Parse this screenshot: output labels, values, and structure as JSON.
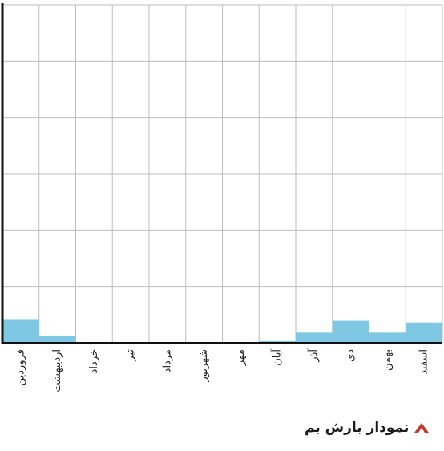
{
  "chart_data": {
    "type": "bar",
    "title": "نمودار بارش بم",
    "categories": [
      "فروردین",
      "اردیبهشت",
      "خرداد",
      "تیر",
      "مرداد",
      "شهریور",
      "مهر",
      "آبان",
      "آذر",
      "دی",
      "بهمن",
      "اسفند"
    ],
    "values": [
      7,
      2,
      0,
      0,
      0,
      0,
      0,
      0.5,
      3,
      6.5,
      3,
      6
    ],
    "ylim": [
      0,
      100
    ],
    "grid": true,
    "xlabel": "",
    "ylabel": "",
    "colors": {
      "bar": "#7ec8e3",
      "grid": "#bdbdbd",
      "axis": "#111111",
      "icon": "#c0392b"
    }
  },
  "caption": {
    "icon": "triangle-marker-icon",
    "text": "نمودار بارش بم"
  }
}
